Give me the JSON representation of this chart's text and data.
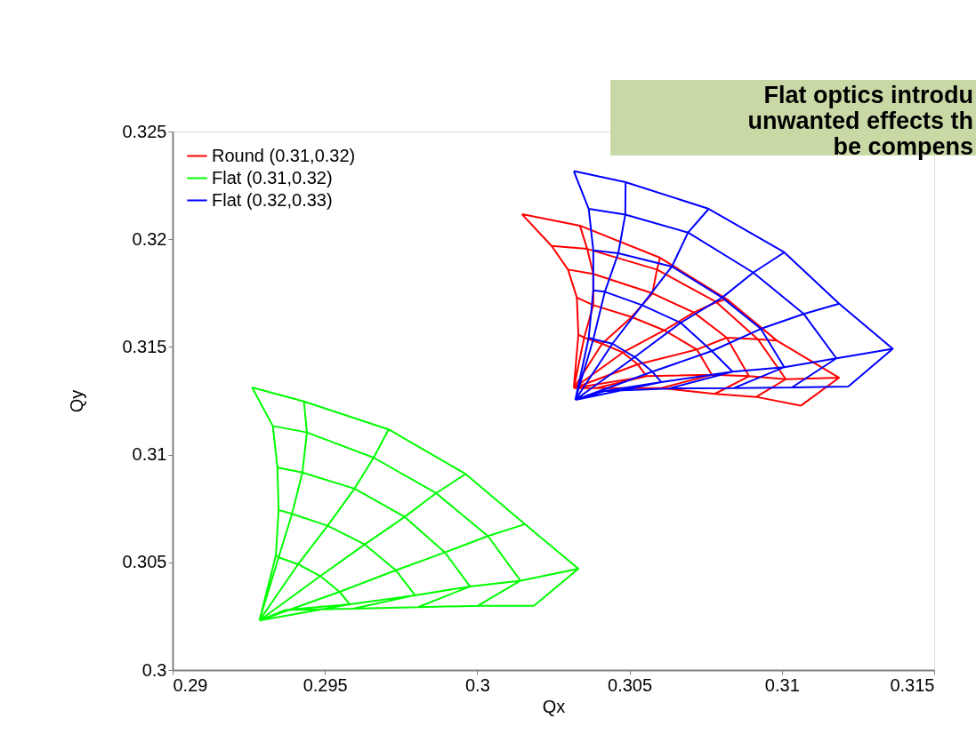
{
  "chart_data": {
    "type": "line",
    "xlabel": "Qx",
    "ylabel": "Qy",
    "annotations": [
      "Flat optics introdu",
      "unwanted effects th",
      "be compens"
    ],
    "xlim": [
      0.29,
      0.315
    ],
    "xticks": [
      0.29,
      0.295,
      0.3,
      0.305,
      0.31,
      0.315
    ],
    "ylim": [
      0.3,
      0.325
    ],
    "yticks": [
      0.3,
      0.305,
      0.31,
      0.315,
      0.32,
      0.325
    ],
    "grid": false,
    "legend": "top left",
    "marker": "none",
    "line_style": "solid",
    "series": [
      {
        "name": "Round (0.31,0.32)",
        "color": "#ff0000",
        "x": [
          0.30317,
          0.30332,
          0.30327,
          0.30298,
          0.30244,
          0.30147,
          null,
          0.30317,
          0.30351,
          0.30381,
          0.30381,
          0.30361,
          0.30337,
          null,
          0.30317,
          0.3041,
          0.30507,
          0.30575,
          0.3059,
          0.306,
          null,
          0.30317,
          0.30478,
          0.30614,
          0.30711,
          0.30785,
          0.30819,
          null,
          0.30317,
          0.30527,
          0.30721,
          0.30819,
          0.30921,
          0.30984,
          null,
          0.30317,
          0.30556,
          0.3077,
          0.30892,
          0.31013,
          0.31188,
          null,
          0.30317,
          0.3039,
          0.30604,
          0.3078,
          0.30916,
          0.31062,
          null,
          0.30332,
          0.30351,
          0.3041,
          0.30478,
          0.30527,
          0.30556,
          0.3039,
          null,
          0.30327,
          0.30381,
          0.30507,
          0.30614,
          0.30721,
          0.3077,
          0.30604,
          null,
          0.30298,
          0.30381,
          0.30575,
          0.30711,
          0.30819,
          0.30892,
          0.3078,
          null,
          0.30244,
          0.30361,
          0.3059,
          0.30785,
          0.30921,
          0.31013,
          0.30916,
          null,
          0.30147,
          0.30337,
          0.306,
          0.30819,
          0.30984,
          0.31188,
          0.31062
        ],
        "values": [
          0.31309,
          0.31557,
          0.31729,
          0.31859,
          0.31969,
          0.32116,
          null,
          0.31309,
          0.31543,
          0.31694,
          0.31839,
          0.31955,
          0.32063,
          null,
          0.31309,
          0.31515,
          0.31639,
          0.31749,
          0.31859,
          0.31914,
          null,
          0.31309,
          0.31474,
          0.31577,
          0.3166,
          0.31708,
          0.31722,
          null,
          0.31309,
          0.31419,
          0.31488,
          0.31543,
          0.31536,
          0.31529,
          null,
          0.31309,
          0.31364,
          0.31371,
          0.31364,
          0.3135,
          0.31357,
          null,
          0.31309,
          0.31309,
          0.31309,
          0.31282,
          0.31268,
          0.31227,
          null,
          0.31557,
          0.31543,
          0.31515,
          0.31474,
          0.31419,
          0.31364,
          0.31309,
          null,
          0.31729,
          0.31694,
          0.31639,
          0.31577,
          0.31488,
          0.31371,
          0.31309,
          null,
          0.31859,
          0.31839,
          0.31749,
          0.3166,
          0.31543,
          0.31364,
          0.31282,
          null,
          0.31969,
          0.31955,
          0.31859,
          0.31708,
          0.31536,
          0.3135,
          0.31268,
          null,
          0.32116,
          0.32063,
          0.31914,
          0.31722,
          0.31529,
          0.31357,
          0.31227
        ]
      },
      {
        "name": "Flat (0.31,0.32)",
        "color": "#00ff00",
        "x": [
          0.29285,
          0.29339,
          0.29348,
          0.29344,
          0.29329,
          0.29261,
          null,
          0.29285,
          0.29348,
          0.29392,
          0.29426,
          0.29441,
          0.29431,
          null,
          0.29285,
          0.29412,
          0.29509,
          0.29597,
          0.2966,
          0.29709,
          null,
          0.29285,
          0.29485,
          0.29631,
          0.29762,
          0.29865,
          0.29962,
          null,
          0.29285,
          0.29548,
          0.29733,
          0.29894,
          0.30035,
          0.30157,
          null,
          0.29285,
          0.29582,
          0.29796,
          0.29976,
          0.30142,
          0.30332,
          null,
          0.29285,
          0.29368,
          0.29592,
          0.29806,
          0.30001,
          0.30186,
          null,
          0.29339,
          0.29348,
          0.29412,
          0.29485,
          0.29548,
          0.29582,
          0.29368,
          null,
          0.29348,
          0.29392,
          0.29509,
          0.29631,
          0.29733,
          0.29796,
          0.29592,
          null,
          0.29344,
          0.29426,
          0.29597,
          0.29762,
          0.29894,
          0.29976,
          0.29806,
          null,
          0.29329,
          0.29441,
          0.2966,
          0.29865,
          0.30035,
          0.30142,
          0.30001,
          null,
          0.29261,
          0.29431,
          0.29709,
          0.29962,
          0.30157,
          0.30332,
          0.30186
        ],
        "values": [
          0.3023,
          0.30532,
          0.30743,
          0.30941,
          0.31133,
          0.31312,
          null,
          0.3023,
          0.30523,
          0.30725,
          0.30917,
          0.31103,
          0.31247,
          null,
          0.3023,
          0.30491,
          0.3067,
          0.30842,
          0.30986,
          0.31117,
          null,
          0.3023,
          0.30436,
          0.30583,
          0.30711,
          0.30821,
          0.3091,
          null,
          0.3023,
          0.30363,
          0.30463,
          0.30546,
          0.30622,
          0.30677,
          null,
          0.3023,
          0.30305,
          0.30347,
          0.30388,
          0.30415,
          0.3047,
          null,
          0.3023,
          0.30278,
          0.30285,
          0.30292,
          0.30298,
          0.30298,
          null,
          0.30532,
          0.30523,
          0.30491,
          0.30436,
          0.30363,
          0.30305,
          0.30278,
          null,
          0.30743,
          0.30725,
          0.3067,
          0.30583,
          0.30463,
          0.30347,
          0.30285,
          null,
          0.30941,
          0.30917,
          0.30842,
          0.30711,
          0.30546,
          0.30388,
          0.30292,
          null,
          0.31133,
          0.31103,
          0.30986,
          0.30821,
          0.30622,
          0.30415,
          0.30298,
          null,
          0.31312,
          0.31247,
          0.31117,
          0.3091,
          0.30677,
          0.3047,
          0.30298
        ]
      },
      {
        "name": "Flat (0.32,0.33)",
        "color": "#0000ff",
        "x": [
          0.30322,
          0.30366,
          0.30381,
          0.30381,
          0.30366,
          0.30317,
          null,
          0.30322,
          0.30381,
          0.30419,
          0.30463,
          0.30486,
          0.30487,
          null,
          0.30322,
          0.30444,
          0.30541,
          0.30639,
          0.30692,
          0.3076,
          null,
          0.30322,
          0.30517,
          0.30668,
          0.30804,
          0.30906,
          0.31008,
          null,
          0.30322,
          0.30575,
          0.3077,
          0.30931,
          0.31072,
          0.31188,
          null,
          0.30322,
          0.30604,
          0.30838,
          0.31008,
          0.31179,
          0.31364,
          null,
          0.30322,
          0.30419,
          0.30629,
          0.30843,
          0.31033,
          0.31218,
          null,
          0.30366,
          0.30381,
          0.30444,
          0.30517,
          0.30575,
          0.30604,
          0.30419,
          null,
          0.30381,
          0.30419,
          0.30541,
          0.30668,
          0.3077,
          0.30838,
          0.30629,
          null,
          0.30381,
          0.30463,
          0.30639,
          0.30804,
          0.30931,
          0.31008,
          0.30843,
          null,
          0.30366,
          0.30486,
          0.30692,
          0.30906,
          0.31072,
          0.31179,
          0.31033,
          null,
          0.30317,
          0.30487,
          0.3076,
          0.31008,
          0.31188,
          0.31364,
          0.31218
        ],
        "values": [
          0.31254,
          0.31543,
          0.31763,
          0.31948,
          0.32141,
          0.32316,
          null,
          0.31254,
          0.31536,
          0.31756,
          0.31935,
          0.32114,
          0.32265,
          null,
          0.31254,
          0.31515,
          0.31694,
          0.31873,
          0.32031,
          0.32141,
          null,
          0.31254,
          0.31453,
          0.31612,
          0.31729,
          0.31845,
          0.31939,
          null,
          0.31254,
          0.31385,
          0.31481,
          0.31584,
          0.31653,
          0.31701,
          null,
          0.31254,
          0.31337,
          0.31385,
          0.31406,
          0.31447,
          0.31491,
          null,
          0.31254,
          0.31295,
          0.31307,
          0.31309,
          0.31312,
          0.31316,
          null,
          0.31543,
          0.31536,
          0.31515,
          0.31453,
          0.31385,
          0.31337,
          0.31295,
          null,
          0.31763,
          0.31756,
          0.31694,
          0.31612,
          0.31481,
          0.31385,
          0.31307,
          null,
          0.31948,
          0.31935,
          0.31873,
          0.31729,
          0.31584,
          0.31406,
          0.31309,
          null,
          0.32141,
          0.32114,
          0.32031,
          0.31845,
          0.31653,
          0.31447,
          0.31312,
          null,
          0.32316,
          0.32265,
          0.32141,
          0.31939,
          0.31701,
          0.31491,
          0.31316
        ]
      }
    ]
  }
}
